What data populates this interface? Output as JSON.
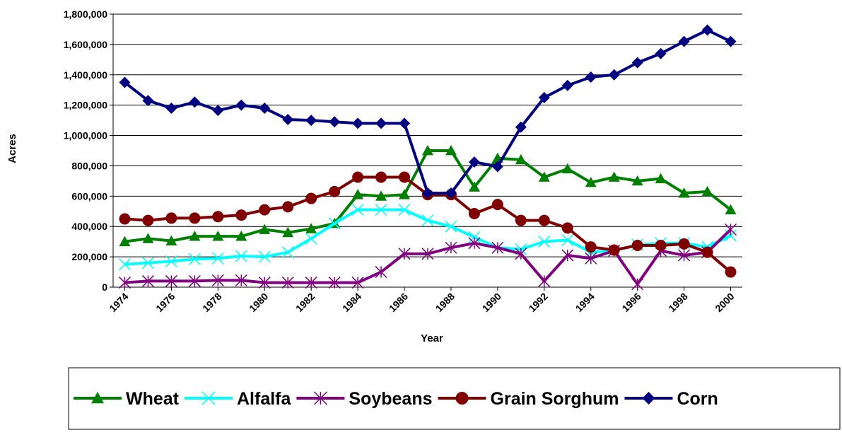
{
  "chart_data": {
    "type": "line",
    "x_label": "Year",
    "y_label": "Acres",
    "x": [
      1974,
      1975,
      1976,
      1977,
      1978,
      1979,
      1980,
      1981,
      1982,
      1983,
      1984,
      1985,
      1986,
      1987,
      1988,
      1989,
      1990,
      1991,
      1992,
      1993,
      1994,
      1995,
      1996,
      1997,
      1998,
      1999,
      2000
    ],
    "xlim": [
      1973.5,
      2000.5
    ],
    "xticks": [
      1974,
      1976,
      1978,
      1980,
      1982,
      1984,
      1986,
      1988,
      1990,
      1992,
      1994,
      1996,
      1998,
      2000
    ],
    "ylim": [
      0,
      1800000
    ],
    "yticks": [
      0,
      {
        "value": 200000,
        "label": "200,000"
      },
      {
        "value": 400000,
        "label": "400,000"
      },
      {
        "value": 600000,
        "label": "600,000"
      },
      {
        "value": 800000,
        "label": "800,000"
      },
      {
        "value": 1000000,
        "label": "1,000,000"
      },
      {
        "value": 1200000,
        "label": "1,200,000"
      },
      {
        "value": 1400000,
        "label": "1,400,000"
      },
      {
        "value": 1600000,
        "label": "1,600,000"
      },
      {
        "value": 1800000,
        "label": "1,800,000"
      }
    ],
    "grid": true,
    "legend": "bottom",
    "series": [
      {
        "name": "Wheat",
        "color": "#008000",
        "marker": "triangle",
        "values": [
          300000,
          320000,
          305000,
          335000,
          335000,
          335000,
          380000,
          360000,
          385000,
          420000,
          610000,
          600000,
          610000,
          900000,
          900000,
          660000,
          850000,
          840000,
          725000,
          780000,
          690000,
          725000,
          700000,
          715000,
          620000,
          630000,
          510000
        ]
      },
      {
        "name": "Alfalfa",
        "color": "#00ffff",
        "marker": "x",
        "values": [
          150000,
          160000,
          170000,
          185000,
          190000,
          205000,
          200000,
          230000,
          320000,
          420000,
          510000,
          510000,
          510000,
          440000,
          400000,
          330000,
          260000,
          250000,
          300000,
          310000,
          230000,
          240000,
          280000,
          290000,
          290000,
          265000,
          340000
        ]
      },
      {
        "name": "Soybeans",
        "color": "#800080",
        "marker": "star",
        "values": [
          30000,
          40000,
          40000,
          40000,
          45000,
          45000,
          30000,
          30000,
          30000,
          30000,
          30000,
          100000,
          220000,
          220000,
          260000,
          290000,
          260000,
          220000,
          40000,
          210000,
          190000,
          240000,
          20000,
          240000,
          210000,
          230000,
          380000
        ]
      },
      {
        "name": "Grain Sorghum",
        "color": "#800000",
        "marker": "circle",
        "values": [
          450000,
          440000,
          455000,
          455000,
          465000,
          475000,
          510000,
          530000,
          585000,
          630000,
          725000,
          725000,
          725000,
          610000,
          610000,
          485000,
          545000,
          440000,
          440000,
          390000,
          265000,
          245000,
          275000,
          275000,
          285000,
          230000,
          100000
        ]
      },
      {
        "name": "Corn",
        "color": "#000080",
        "marker": "diamond",
        "values": [
          1350000,
          1230000,
          1180000,
          1220000,
          1165000,
          1200000,
          1180000,
          1105000,
          1100000,
          1090000,
          1080000,
          1080000,
          1080000,
          620000,
          620000,
          825000,
          795000,
          1055000,
          1250000,
          1330000,
          1385000,
          1400000,
          1480000,
          1540000,
          1620000,
          1695000,
          1620000
        ]
      }
    ]
  }
}
